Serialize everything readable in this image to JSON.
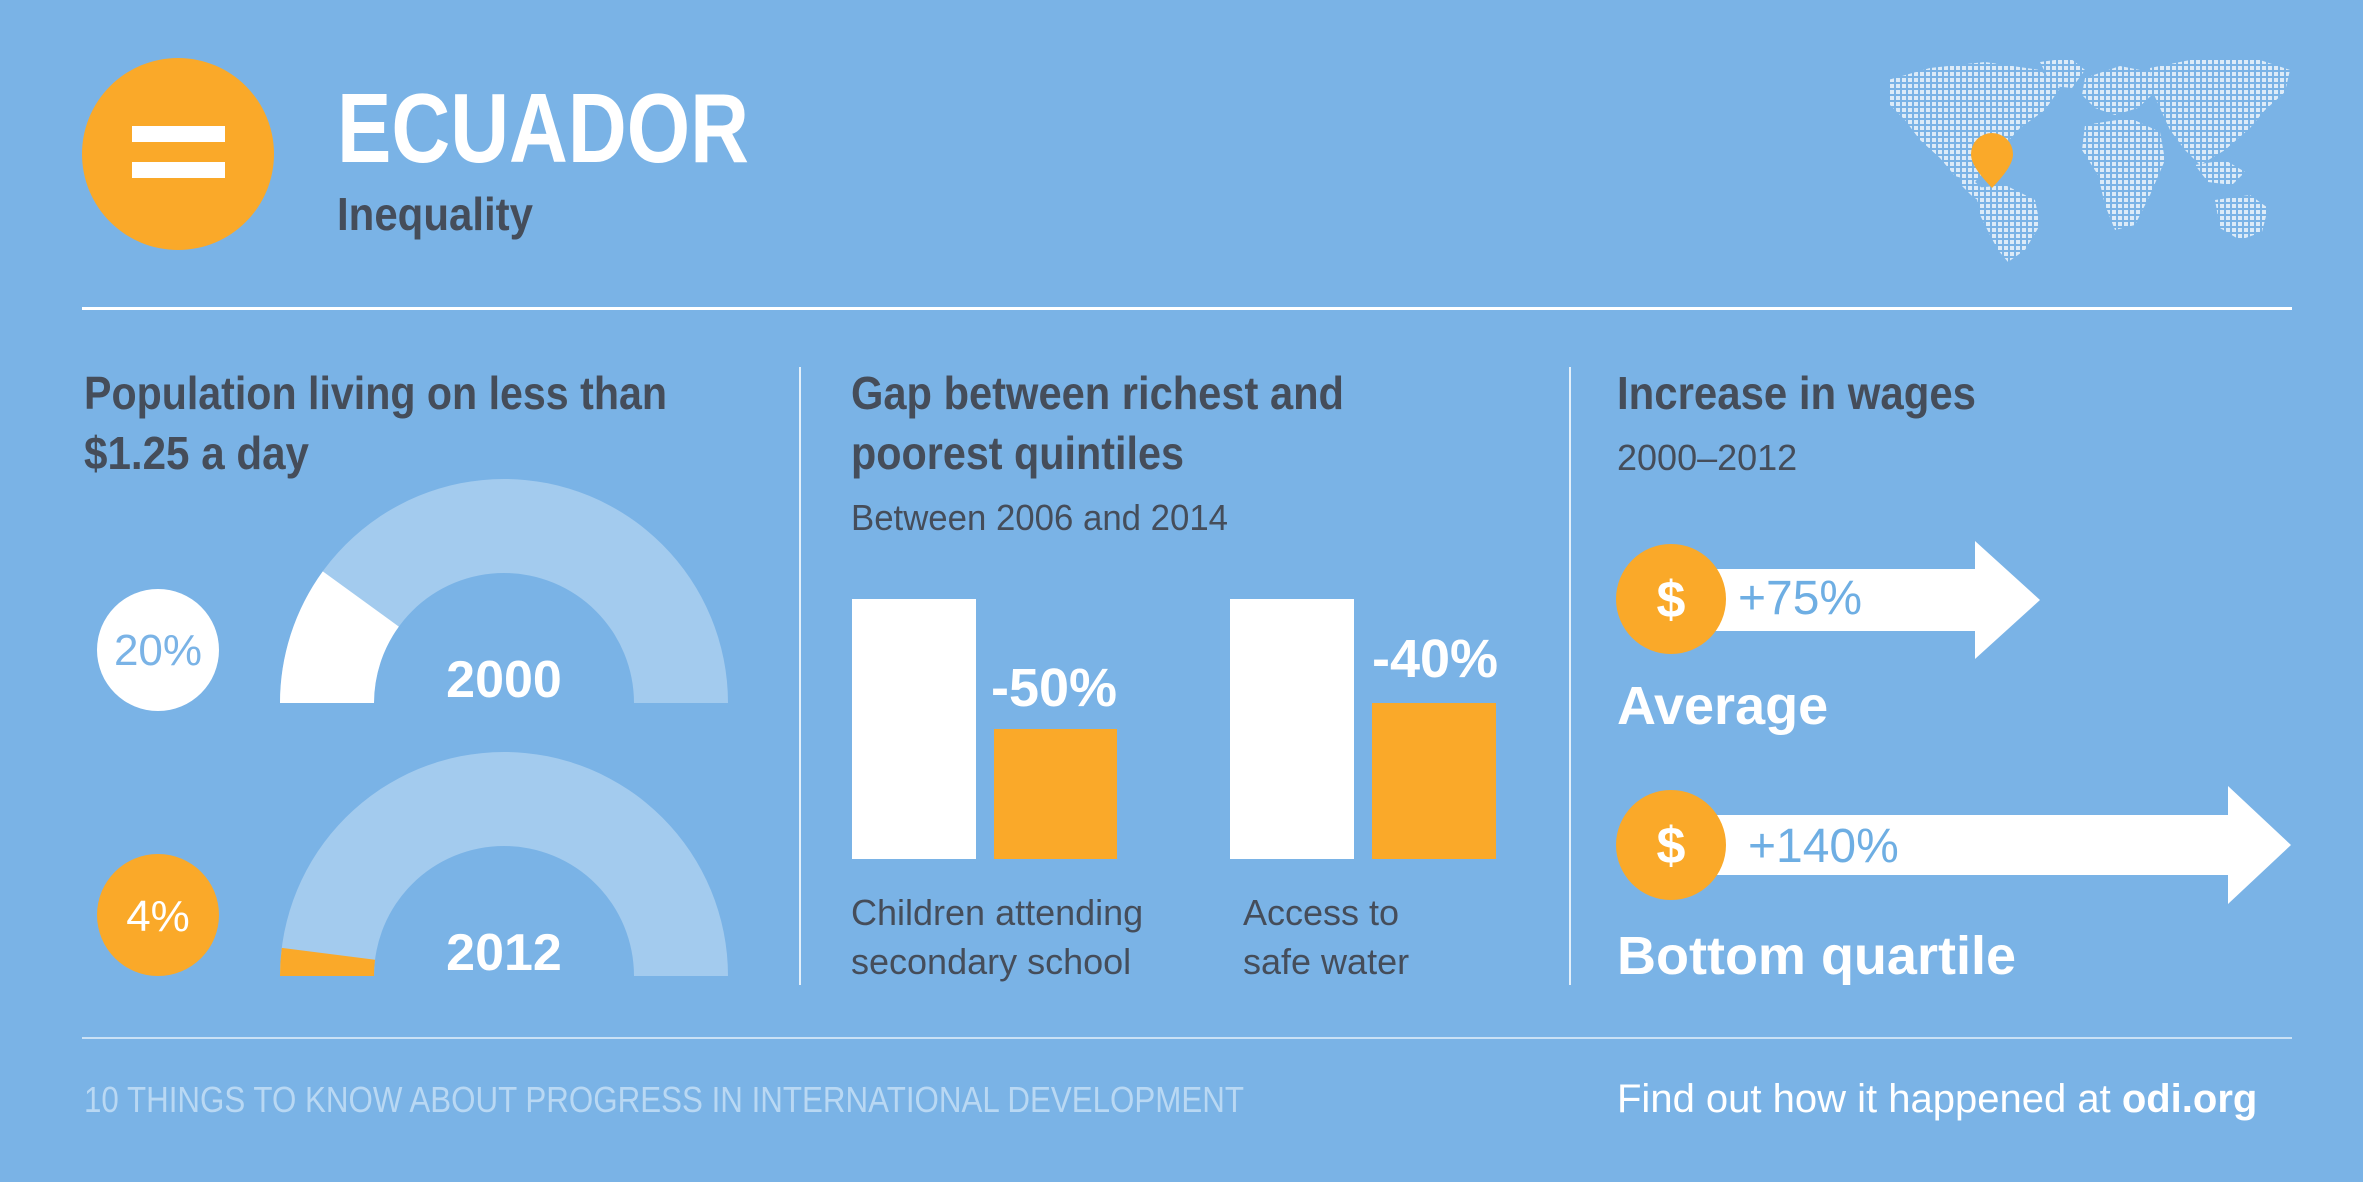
{
  "header": {
    "title": "ECUADOR",
    "subtitle": "Inequality",
    "logo_icon": "equals-icon",
    "map_icon": "world-map-dotted-icon"
  },
  "colors": {
    "background": "#7ab3e6",
    "accent": "#faa929",
    "white": "#ffffff",
    "pale_blue": "#a3cbee",
    "dark_text": "#454d5a",
    "light_text": "#b9d8f3",
    "blue_text": "#6eaee3"
  },
  "poverty": {
    "heading_line1": "Population living on less than",
    "heading_line2": "$1.25 a day",
    "items": [
      {
        "year": "2000",
        "percent_label": "20%",
        "share": 0.2
      },
      {
        "year": "2012",
        "percent_label": "4%",
        "share": 0.04
      }
    ]
  },
  "gap": {
    "heading_line1": "Gap between richest and",
    "heading_line2": "poorest quintiles",
    "subheading": "Between 2006 and 2014",
    "bars": [
      {
        "change_label": "-50%",
        "change": -0.5,
        "label_line1": "Children attending",
        "label_line2": "secondary school"
      },
      {
        "change_label": "-40%",
        "change": -0.4,
        "label_line1": "Access to",
        "label_line2": "safe water"
      }
    ]
  },
  "wages": {
    "heading": "Increase in wages",
    "period": "2000–2012",
    "currency_symbol": "$",
    "items": [
      {
        "value_label": "+75%",
        "value": 75,
        "group": "Average"
      },
      {
        "value_label": "+140%",
        "value": 140,
        "group": "Bottom quartile"
      }
    ]
  },
  "footer": {
    "left": "10 THINGS TO KNOW ABOUT PROGRESS IN INTERNATIONAL DEVELOPMENT",
    "right_prefix": "Find out how it happened at ",
    "right_link": "odi.org"
  }
}
